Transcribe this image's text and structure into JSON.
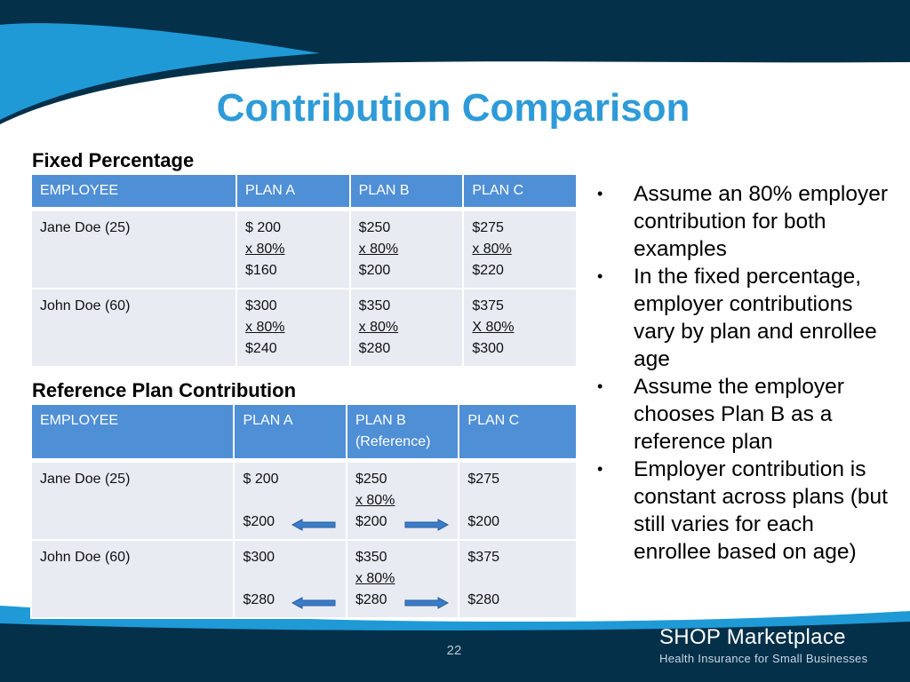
{
  "slide": {
    "title": "Contribution Comparison",
    "page_number": "22"
  },
  "fixed": {
    "label": "Fixed Percentage",
    "headers": [
      "EMPLOYEE",
      "PLAN A",
      "PLAN B",
      "PLAN C"
    ],
    "rows": [
      {
        "employee": "Jane Doe (25)",
        "plan_a": [
          "$ 200",
          "x 80%",
          "$160"
        ],
        "plan_b": [
          "$250",
          "x 80%",
          "$200"
        ],
        "plan_c": [
          "$275",
          "x 80%",
          "$220"
        ]
      },
      {
        "employee": "John Doe (60)",
        "plan_a": [
          "$300",
          "x 80%",
          "$240"
        ],
        "plan_b": [
          "$350",
          "x 80%",
          "$280"
        ],
        "plan_c": [
          "$375",
          "X 80%",
          "$300"
        ]
      }
    ]
  },
  "reference": {
    "label": "Reference Plan Contribution",
    "headers": [
      "EMPLOYEE",
      "PLAN A",
      "PLAN B",
      "(Reference)",
      "PLAN C"
    ],
    "rows": [
      {
        "employee": "Jane Doe (25)",
        "plan_a": [
          "$ 200",
          "$200"
        ],
        "plan_b": [
          "$250",
          "x 80%",
          "$200"
        ],
        "plan_c": [
          "$275",
          "$200"
        ]
      },
      {
        "employee": "John Doe (60)",
        "plan_a": [
          "$300",
          "$280"
        ],
        "plan_b": [
          "$350",
          "x 80%",
          "$280"
        ],
        "plan_c": [
          "$375",
          "$280"
        ]
      }
    ]
  },
  "bullets": [
    "Assume an 80% employer contribution for both examples",
    "In the fixed percentage, employer contributions vary by plan and enrollee age",
    "Assume the employer chooses Plan B as a reference plan",
    "Employer contribution is constant across plans (but still varies for each enrollee based on age)"
  ],
  "bullet_marker": "•",
  "brand": {
    "name": "SHOP Marketplace",
    "tagline": "Health Insurance for Small Businesses"
  },
  "colors": {
    "title": "#2e9bd8",
    "header_fill": "#4f8fd6",
    "cell_fill": "#e8ebf2",
    "dark_navy": "#04304a",
    "accent_blue": "#1f9ad6",
    "arrow_fill": "#3a7cc8"
  },
  "icons": {
    "arrow_left": "arrow-left-icon",
    "arrow_right": "arrow-right-icon"
  }
}
